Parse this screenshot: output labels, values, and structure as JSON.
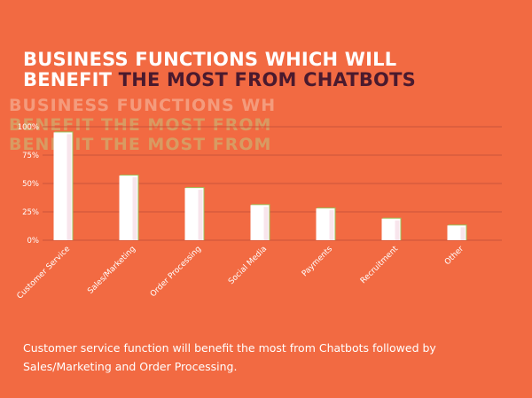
{
  "title": {
    "line1": "BUSINESS FUNCTIONS WHICH WILL",
    "line2_white": "BENEFIT",
    "line2_dark": "THE MOST FROM CHATBOTS"
  },
  "ghost_text": {
    "line1": "BUSINESS FUNCTIONS WHICH WILL",
    "line2": "BENEFIT THE MOST FROM CHATBOTS",
    "line3": "BENEFIT THE MOST FROM CHATBOTS"
  },
  "chart_data": {
    "type": "bar",
    "categories": [
      "Customer Service",
      "Sales/Marketing",
      "Order Processing",
      "Social Media",
      "Payments",
      "Recruitment",
      "Other"
    ],
    "values": [
      95,
      57,
      46,
      31,
      28,
      19,
      13
    ],
    "ylim": [
      0,
      100
    ],
    "yticks": [
      0,
      25,
      50,
      75,
      100
    ],
    "ytick_labels": [
      "0%",
      "25%",
      "50%",
      "75%",
      "100%"
    ],
    "grid": true,
    "colors": {
      "bar": "#ffffff",
      "bar_shade": "#f3d3e0",
      "bar_edge": "#9cc05a",
      "grid": "#c9543a",
      "axis_text": "#ffffff"
    }
  },
  "caption": "Customer service function will benefit the most from Chatbots followed by Sales/Marketing and Order Processing."
}
